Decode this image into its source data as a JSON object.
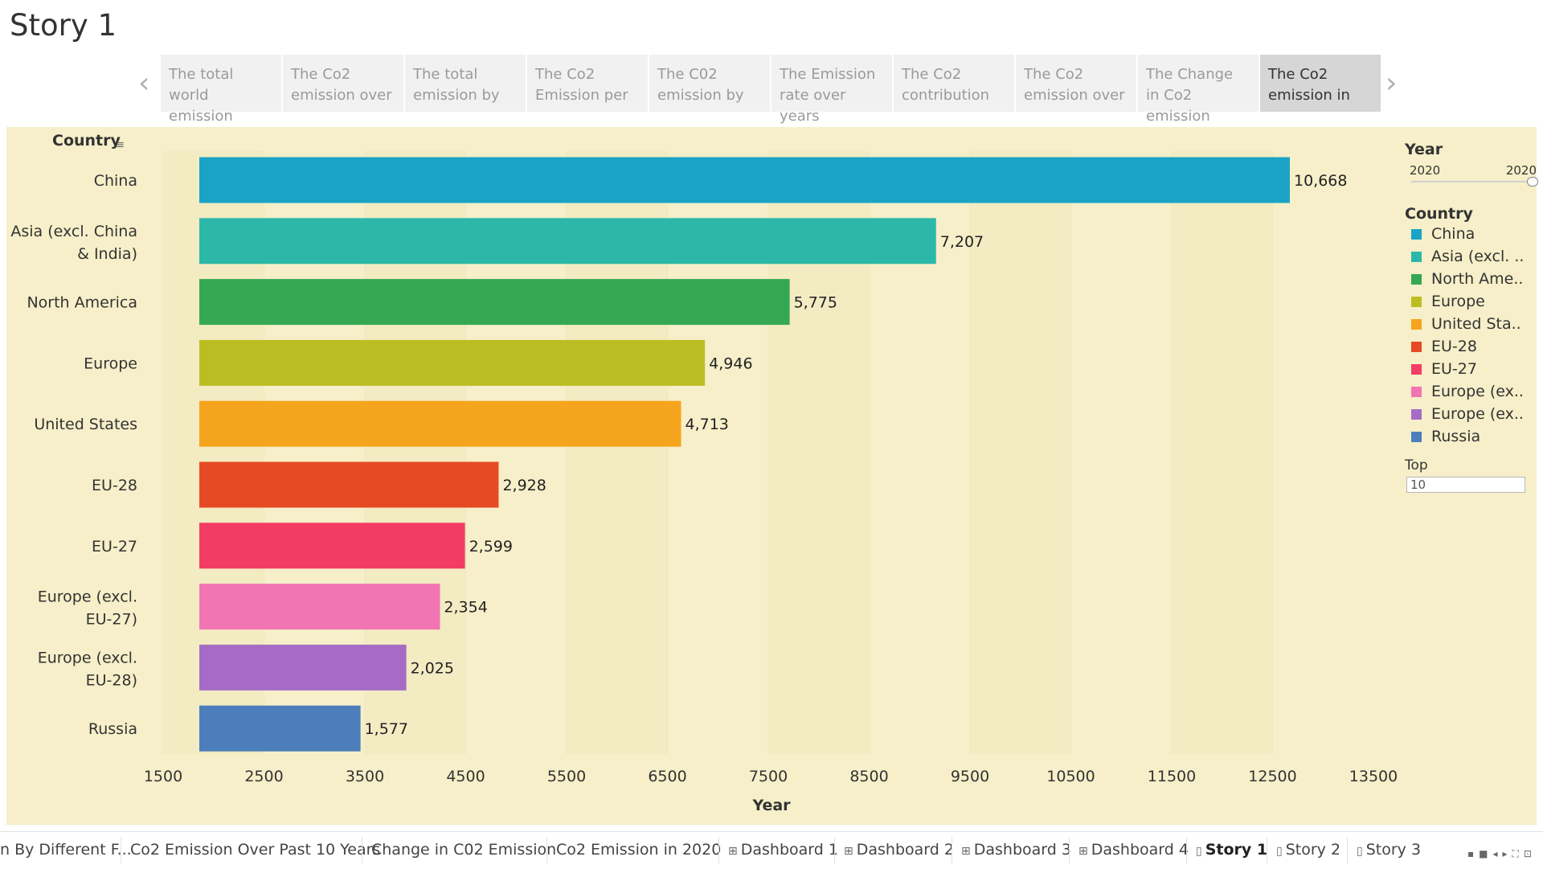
{
  "page_title": "Story 1",
  "story_points": [
    {
      "label": "The total world emission",
      "active": false
    },
    {
      "label": "The  Co2 emission over",
      "active": false
    },
    {
      "label": "The total emission by",
      "active": false
    },
    {
      "label": "The Co2 Emission per",
      "active": false
    },
    {
      "label": "The C02 emission by",
      "active": false
    },
    {
      "label": "The Emission rate over years",
      "active": false
    },
    {
      "label": "The Co2 contribution",
      "active": false
    },
    {
      "label": "The Co2 emission over",
      "active": false
    },
    {
      "label": "The Change in Co2 emission",
      "active": false
    },
    {
      "label": "The Co2 emission in",
      "active": true
    }
  ],
  "nav": {
    "prev": "‹",
    "next": "›"
  },
  "chart_data": {
    "type": "bar",
    "orientation": "horizontal",
    "row_header": "Country",
    "categories": [
      "China",
      "Asia (excl. China & India)",
      "North America",
      "Europe",
      "United States",
      "EU-28",
      "EU-27",
      "Europe (excl. EU-27)",
      "Europe (excl. EU-28)",
      "Russia"
    ],
    "category_display": [
      [
        "China"
      ],
      [
        "Asia (excl. China",
        "& India)"
      ],
      [
        "North America"
      ],
      [
        "Europe"
      ],
      [
        "United States"
      ],
      [
        "EU-28"
      ],
      [
        "EU-27"
      ],
      [
        "Europe (excl.",
        "EU-27)"
      ],
      [
        "Europe (excl.",
        "EU-28)"
      ],
      [
        "Russia"
      ]
    ],
    "values": [
      10668,
      7207,
      5775,
      4946,
      4713,
      2928,
      2599,
      2354,
      2025,
      1577
    ],
    "value_labels": [
      "10,668",
      "7,207",
      "5,775",
      "4,946",
      "4,713",
      "2,928",
      "2,599",
      "2,354",
      "2,025",
      "1,577"
    ],
    "colors": [
      "#1ba3c6",
      "#2cb8a8",
      "#35a853",
      "#bcbd22",
      "#f5a51d",
      "#e64a24",
      "#f33c64",
      "#f075b2",
      "#a66cc5",
      "#4d7ebc"
    ],
    "xlabel": "Year",
    "xticks": [
      1500,
      2500,
      3500,
      4500,
      5500,
      6500,
      7500,
      8500,
      9500,
      10500,
      11500,
      12500,
      13500
    ],
    "xlim": [
      1500,
      13500
    ],
    "legend_position": "right",
    "grid": true
  },
  "legend": {
    "year_title": "Year",
    "year_from": "2020",
    "year_to": "2020",
    "country_title": "Country",
    "items": [
      {
        "label": "China",
        "color": "#1ba3c6"
      },
      {
        "label": "Asia (excl. ..",
        "color": "#2cb8a8"
      },
      {
        "label": "North Ame..",
        "color": "#35a853"
      },
      {
        "label": "Europe",
        "color": "#bcbd22"
      },
      {
        "label": "United Sta..",
        "color": "#f5a51d"
      },
      {
        "label": "EU-28",
        "color": "#e64a24"
      },
      {
        "label": "EU-27",
        "color": "#f33c64"
      },
      {
        "label": "Europe (ex..",
        "color": "#f075b2"
      },
      {
        "label": "Europe (ex..",
        "color": "#a66cc5"
      },
      {
        "label": "Russia",
        "color": "#4d7ebc"
      }
    ],
    "top_label": "Top",
    "top_value": "10"
  },
  "sheet_tabs": [
    {
      "label": "n By Different F...",
      "icon": "",
      "active": false
    },
    {
      "label": "Co2 Emission Over Past 10 Years",
      "icon": "",
      "active": false
    },
    {
      "label": "Change in C02 Emission",
      "icon": "",
      "active": false
    },
    {
      "label": "Co2 Emission in 2020",
      "icon": "",
      "active": false
    },
    {
      "label": "Dashboard 1",
      "icon": "⊞",
      "active": false
    },
    {
      "label": "Dashboard 2",
      "icon": "⊞",
      "active": false
    },
    {
      "label": "Dashboard 3",
      "icon": "⊞",
      "active": false
    },
    {
      "label": "Dashboard 4",
      "icon": "⊞",
      "active": false
    },
    {
      "label": "Story 1",
      "icon": "▯",
      "active": true
    },
    {
      "label": "Story 2",
      "icon": "▯",
      "active": false
    },
    {
      "label": "Story 3",
      "icon": "▯",
      "active": false
    }
  ]
}
